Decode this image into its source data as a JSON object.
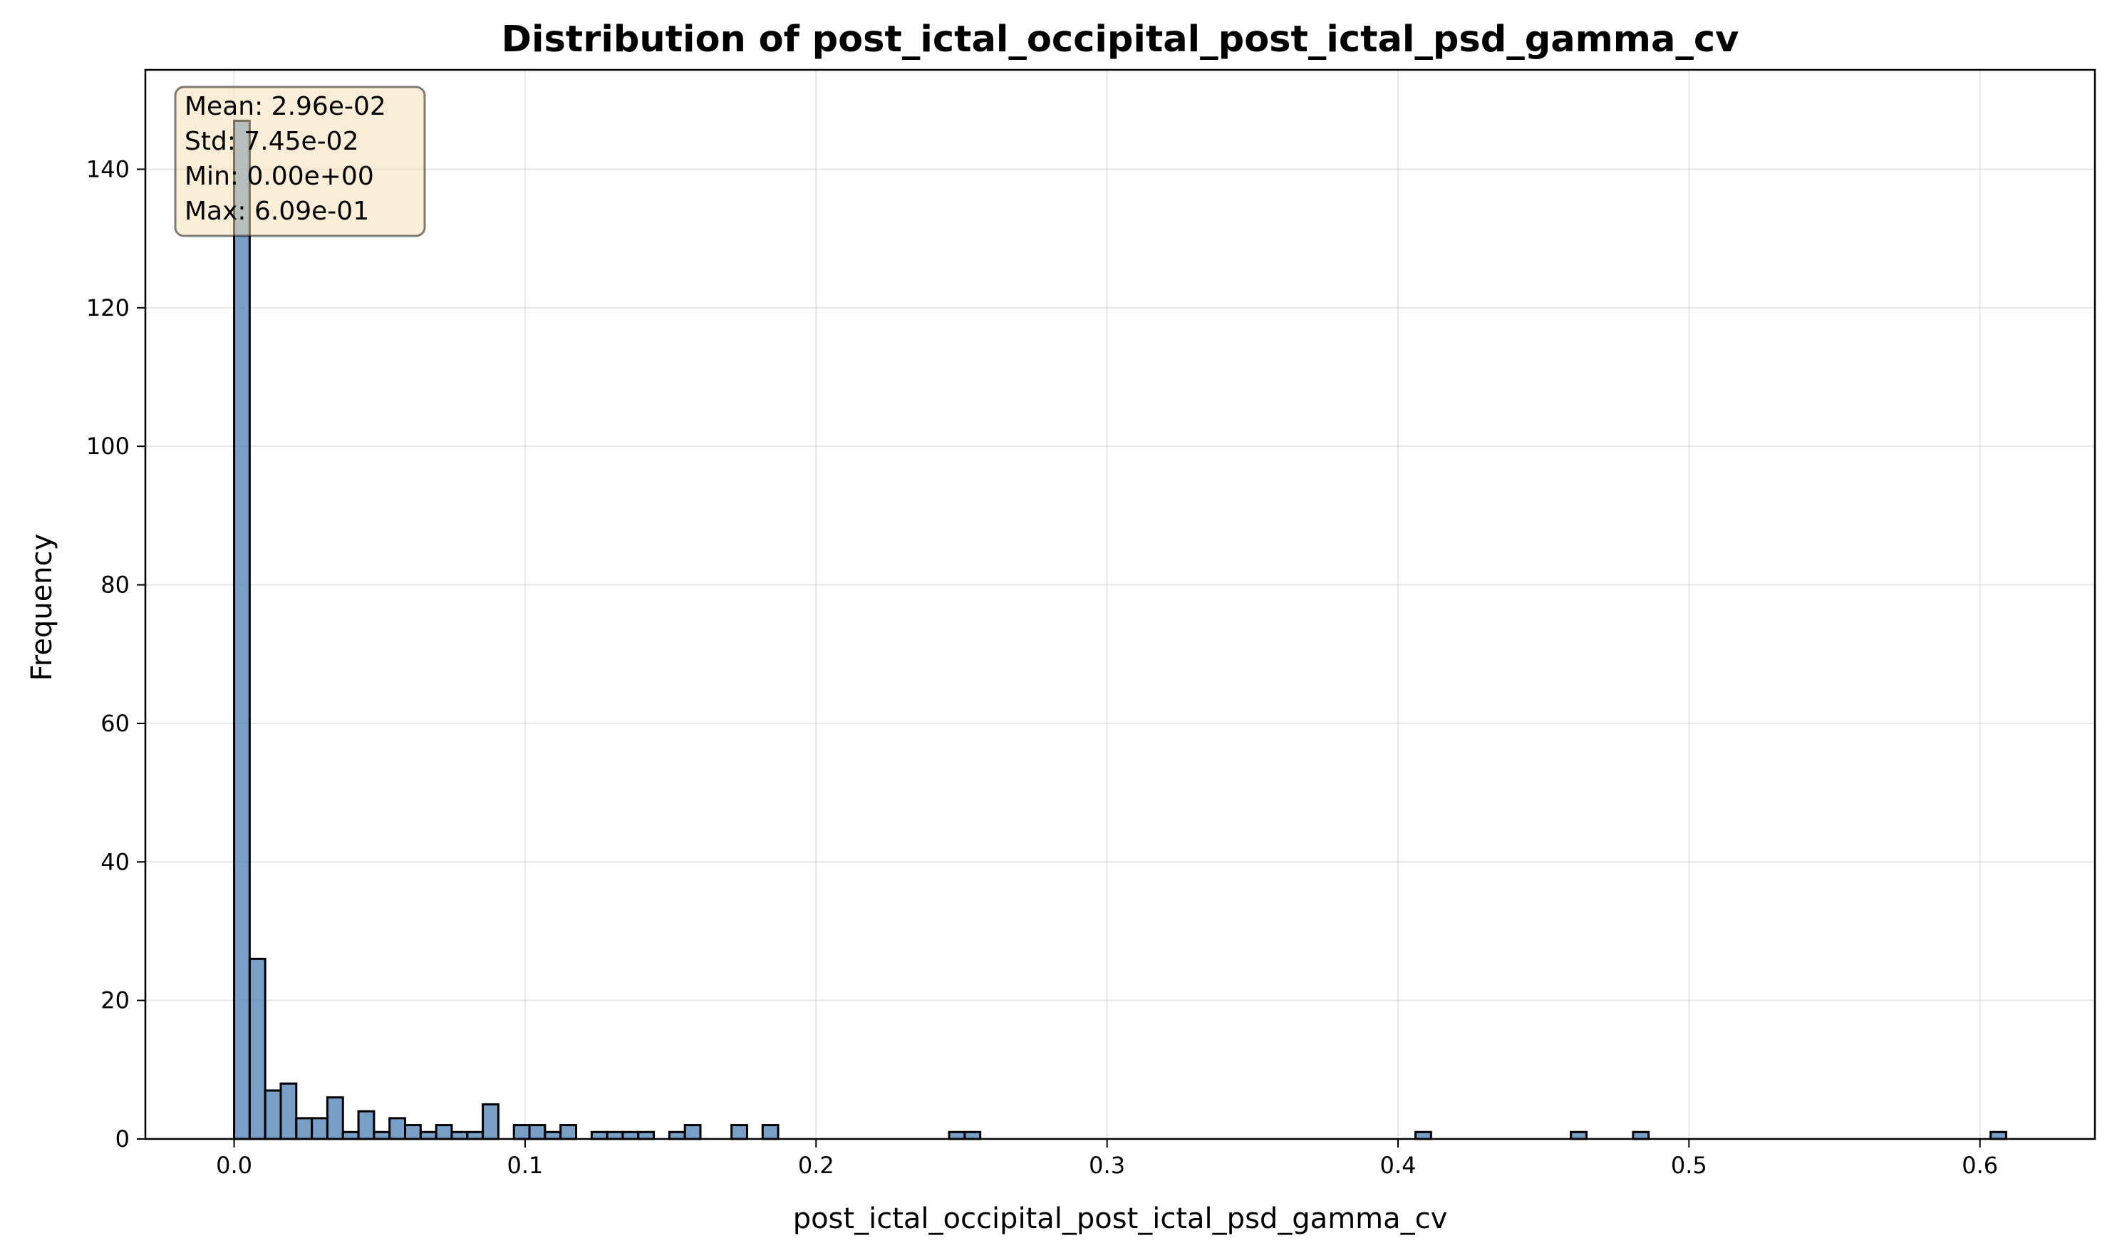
{
  "chart_data": {
    "type": "histogram",
    "title": "Distribution of post_ictal_occipital_post_ictal_psd_gamma_cv",
    "xlabel": "post_ictal_occipital_post_ictal_psd_gamma_cv",
    "ylabel": "Frequency",
    "xlim": [
      -0.0305,
      0.6395
    ],
    "ylim": [
      0,
      154.35
    ],
    "xticks": [
      0.0,
      0.1,
      0.2,
      0.3,
      0.4,
      0.5,
      0.6
    ],
    "xtick_labels": [
      "0.0",
      "0.1",
      "0.2",
      "0.3",
      "0.4",
      "0.5",
      "0.6"
    ],
    "yticks": [
      0,
      20,
      40,
      60,
      80,
      100,
      120,
      140
    ],
    "ytick_labels": [
      "0",
      "20",
      "40",
      "60",
      "80",
      "100",
      "120",
      "140"
    ],
    "grid": true,
    "bar_color": "#4a7fb5",
    "bar_edge_color": "#000000",
    "bins": {
      "start": 0.0,
      "end": 0.609,
      "count": 114,
      "counts": [
        147,
        26,
        7,
        8,
        3,
        3,
        6,
        1,
        4,
        1,
        3,
        2,
        1,
        2,
        1,
        1,
        5,
        0,
        2,
        2,
        1,
        2,
        0,
        1,
        1,
        1,
        1,
        0,
        1,
        2,
        0,
        0,
        2,
        0,
        2,
        0,
        0,
        0,
        0,
        0,
        0,
        0,
        0,
        0,
        0,
        0,
        1,
        1,
        0,
        0,
        0,
        0,
        0,
        0,
        0,
        0,
        0,
        0,
        0,
        0,
        0,
        0,
        0,
        0,
        0,
        0,
        0,
        0,
        0,
        0,
        0,
        0,
        0,
        0,
        0,
        0,
        1,
        0,
        0,
        0,
        0,
        0,
        0,
        0,
        0,
        0,
        1,
        0,
        0,
        0,
        1,
        0,
        0,
        0,
        0,
        0,
        0,
        0,
        0,
        0,
        0,
        0,
        0,
        0,
        0,
        0,
        0,
        0,
        0,
        0,
        0,
        0,
        0,
        1
      ]
    },
    "stats_box": {
      "lines": [
        "Mean: 2.96e-02",
        "Std: 7.45e-02",
        "Min: 0.00e+00",
        "Max: 6.09e-01"
      ],
      "background": "#f5deb3",
      "position": "top-left"
    }
  }
}
